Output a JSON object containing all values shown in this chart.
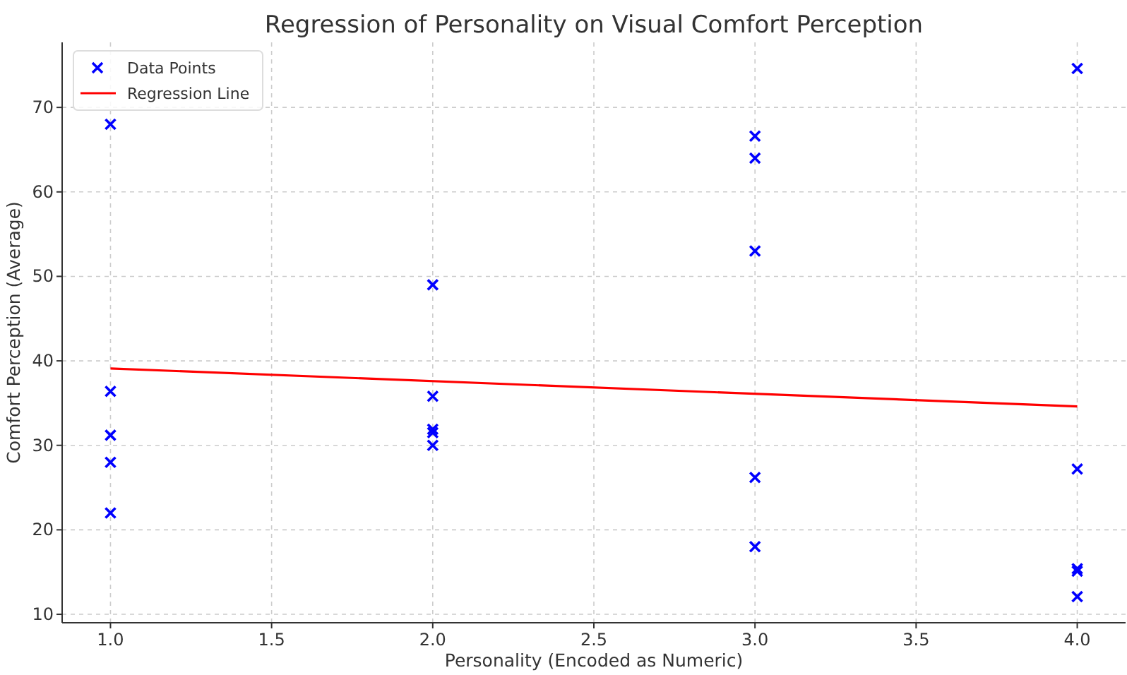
{
  "chart_data": {
    "type": "scatter",
    "title": "Regression of Personality on Visual Comfort Perception",
    "xlabel": "Personality (Encoded as Numeric)",
    "ylabel": "Comfort Perception (Average)",
    "xlim": [
      0.85,
      4.15
    ],
    "xticks": [
      {
        "value": 1,
        "label": "1.0"
      },
      {
        "value": 1.5,
        "label": "1.5"
      },
      {
        "value": 2,
        "label": "2.0"
      },
      {
        "value": 2.5,
        "label": "2.5"
      },
      {
        "value": 3,
        "label": "3.0"
      },
      {
        "value": 3.5,
        "label": "3.5"
      },
      {
        "value": 4,
        "label": "4.0"
      }
    ],
    "ylim": [
      9,
      77.7
    ],
    "yticks": [
      10,
      20,
      30,
      40,
      50,
      60,
      70
    ],
    "grid": true,
    "legend": "top left",
    "series": [
      {
        "name": "Data Points",
        "marker": "cross",
        "color": "#0000ff",
        "x": [
          1,
          1,
          1,
          1,
          1,
          2,
          2,
          2,
          2,
          2,
          3,
          3,
          3,
          3,
          3,
          4,
          4,
          4,
          4,
          4
        ],
        "values": [
          68,
          36.4,
          31.2,
          28,
          22,
          49,
          35.8,
          31.9,
          31.5,
          30,
          66.6,
          64,
          53,
          26.2,
          18,
          74.6,
          27.2,
          15.4,
          15.1,
          12.1
        ]
      },
      {
        "name": "Regression Line",
        "type": "line",
        "marker": "none",
        "color": "#ff0000",
        "x": [
          1,
          4
        ],
        "values": [
          39.1,
          34.6
        ]
      }
    ]
  }
}
